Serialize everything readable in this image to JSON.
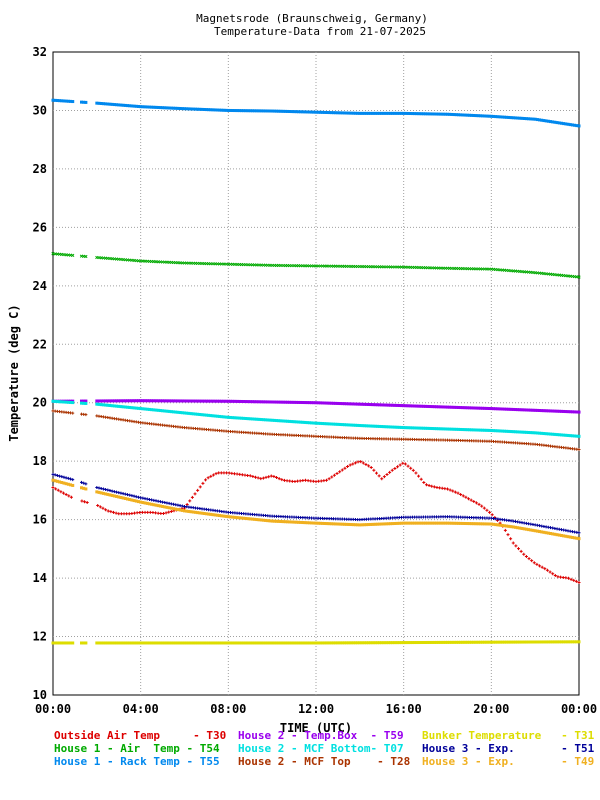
{
  "chart_data": {
    "type": "scatter",
    "title": "Magnetsrode (Braunschweig, Germany)",
    "subtitle": "Temperature-Data from 21-07-2025",
    "xlabel": "TIME (UTC)",
    "ylabel": "Temperature (deg C)",
    "xlim": [
      0,
      24
    ],
    "ylim": [
      10,
      32
    ],
    "x_unit": "hours UTC",
    "grid": true,
    "xticks": [
      "00:00",
      "04:00",
      "08:00",
      "12:00",
      "16:00",
      "20:00",
      "00:00"
    ],
    "yticks": [
      "10",
      "12",
      "14",
      "16",
      "18",
      "20",
      "22",
      "24",
      "26",
      "28",
      "30",
      "32"
    ],
    "legend_position": "bottom",
    "series": [
      {
        "key": "t30",
        "name": "Outside Air Temp",
        "label": "Outside Air Temp     - T30",
        "color": "#dd0000",
        "marker": "plus",
        "x": [
          0,
          0.5,
          1,
          1.5,
          2,
          2.5,
          3,
          3.5,
          4,
          4.5,
          5,
          5.5,
          6,
          6.5,
          7,
          7.5,
          8,
          8.5,
          9,
          9.5,
          10,
          10.5,
          11,
          11.5,
          12,
          12.5,
          13,
          13.5,
          14,
          14.5,
          15,
          15.5,
          16,
          16.5,
          17,
          17.5,
          18,
          18.5,
          19,
          19.5,
          20,
          20.5,
          21,
          21.5,
          22,
          22.5,
          23,
          23.5,
          24
        ],
        "y": [
          17.1,
          16.9,
          16.7,
          16.6,
          16.5,
          16.3,
          16.2,
          16.2,
          16.25,
          16.25,
          16.2,
          16.3,
          16.4,
          16.9,
          17.4,
          17.6,
          17.6,
          17.55,
          17.5,
          17.4,
          17.5,
          17.35,
          17.3,
          17.35,
          17.3,
          17.35,
          17.6,
          17.85,
          18.0,
          17.8,
          17.4,
          17.7,
          17.95,
          17.65,
          17.2,
          17.1,
          17.05,
          16.9,
          16.7,
          16.5,
          16.2,
          15.8,
          15.2,
          14.8,
          14.5,
          14.3,
          14.05,
          14.0,
          13.85
        ]
      },
      {
        "key": "t54",
        "name": "House 1 - Air  Temp",
        "label": "House 1 - Air  Temp - T54",
        "color": "#00aa00",
        "marker": "x",
        "x": [
          0,
          2,
          4,
          6,
          8,
          10,
          12,
          14,
          16,
          18,
          20,
          22,
          24
        ],
        "y": [
          25.1,
          24.97,
          24.85,
          24.78,
          24.74,
          24.7,
          24.68,
          24.66,
          24.64,
          24.6,
          24.57,
          24.45,
          24.3
        ]
      },
      {
        "key": "t55",
        "name": "House 1 - Rack Temp",
        "label": "House 1 - Rack Temp - T55",
        "color": "#0088ee",
        "marker": "square",
        "x": [
          0,
          2,
          4,
          6,
          8,
          10,
          12,
          14,
          16,
          18,
          20,
          22,
          24
        ],
        "y": [
          30.35,
          30.25,
          30.13,
          30.06,
          30.0,
          29.98,
          29.94,
          29.9,
          29.9,
          29.87,
          29.8,
          29.7,
          29.47
        ]
      },
      {
        "key": "t59",
        "name": "House 2 - Temp.Box",
        "label": "House 2 - Temp.Box  - T59",
        "color": "#9900ee",
        "marker": "square",
        "x": [
          0,
          4,
          8,
          12,
          16,
          20,
          24
        ],
        "y": [
          20.05,
          20.07,
          20.05,
          20.0,
          19.9,
          19.8,
          19.68
        ]
      },
      {
        "key": "t07",
        "name": "House 2 - MCF Bottom",
        "label": "House 2 - MCF Bottom- T07",
        "color": "#00e0e0",
        "marker": "square",
        "x": [
          0,
          2,
          4,
          6,
          8,
          10,
          12,
          14,
          16,
          18,
          20,
          22,
          24
        ],
        "y": [
          20.05,
          19.95,
          19.8,
          19.65,
          19.5,
          19.4,
          19.3,
          19.22,
          19.15,
          19.1,
          19.05,
          18.97,
          18.85
        ]
      },
      {
        "key": "t28",
        "name": "House 2 - MCF Top",
        "label": "House 2 - MCF Top    - T28",
        "color": "#aa3300",
        "marker": "plus",
        "x": [
          0,
          2,
          4,
          6,
          8,
          10,
          12,
          14,
          16,
          18,
          20,
          22,
          24
        ],
        "y": [
          19.72,
          19.55,
          19.32,
          19.15,
          19.02,
          18.92,
          18.85,
          18.78,
          18.75,
          18.72,
          18.68,
          18.58,
          18.4
        ]
      },
      {
        "key": "t31",
        "name": "Bunker Temperature",
        "label": "Bunker Temperature   - T31",
        "color": "#dddd00",
        "marker": "square",
        "x": [
          0,
          6,
          12,
          18,
          24
        ],
        "y": [
          11.78,
          11.78,
          11.78,
          11.8,
          11.82
        ]
      },
      {
        "key": "t51",
        "name": "House 3 - Exp.",
        "label": "House 3 - Exp.       - T51",
        "color": "#000099",
        "marker": "plus",
        "x": [
          0,
          1,
          2,
          4,
          6,
          8,
          10,
          12,
          14,
          16,
          18,
          20,
          21,
          22,
          24
        ],
        "y": [
          17.55,
          17.35,
          17.1,
          16.75,
          16.45,
          16.25,
          16.12,
          16.05,
          16.0,
          16.08,
          16.1,
          16.05,
          15.95,
          15.82,
          15.55
        ]
      },
      {
        "key": "t49",
        "name": "House 3 - Exp.",
        "label": "House 3 - Exp.       - T49",
        "color": "#f0b020",
        "marker": "square",
        "x": [
          0,
          1,
          2,
          4,
          6,
          8,
          10,
          12,
          14,
          16,
          18,
          20,
          21,
          22,
          24
        ],
        "y": [
          17.35,
          17.15,
          16.95,
          16.6,
          16.3,
          16.1,
          15.95,
          15.88,
          15.82,
          15.88,
          15.88,
          15.85,
          15.75,
          15.62,
          15.35
        ]
      }
    ]
  }
}
